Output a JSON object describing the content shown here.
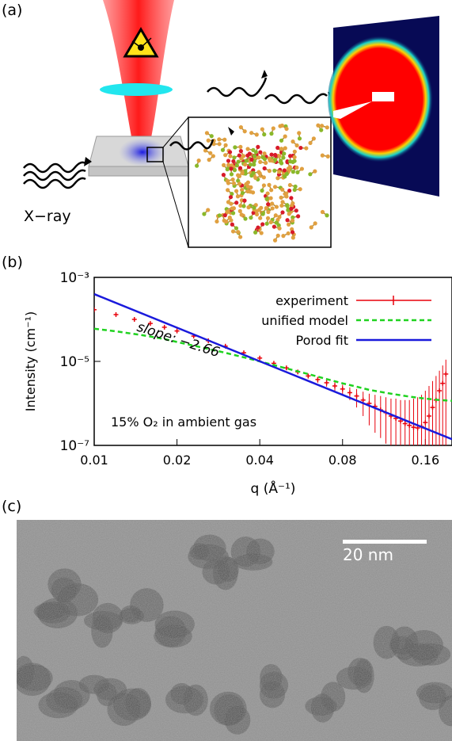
{
  "panels": {
    "a": {
      "label": "(a)",
      "xray_label": "X−ray"
    },
    "b": {
      "label": "(b)"
    },
    "c": {
      "label": "(c)",
      "scale_bar_label": "20 nm"
    }
  },
  "chart_data": {
    "type": "line",
    "xlabel": "q (Å⁻¹)",
    "ylabel": "Intensity (cm⁻¹)",
    "x_scale": "log",
    "y_scale": "log",
    "xlim": [
      0.01,
      0.2
    ],
    "ylim": [
      1e-07,
      0.001
    ],
    "x_ticks": [
      0.01,
      0.02,
      0.04,
      0.08,
      0.16
    ],
    "x_tick_labels": [
      "0.01",
      "0.02",
      "0.04",
      "0.08",
      "0.16"
    ],
    "y_ticks": [
      1e-07,
      1e-05,
      0.001
    ],
    "y_tick_labels": [
      "10⁻⁷",
      "10⁻⁵",
      "10⁻³"
    ],
    "legend_position": "top-right",
    "annotations": [
      {
        "text": "slope: −2.66"
      },
      {
        "text": "15% O₂ in ambient gas"
      }
    ],
    "series": [
      {
        "name": "experiment",
        "style": "red points with error bars",
        "color": "#e8000b",
        "x": [
          0.01,
          0.012,
          0.014,
          0.016,
          0.018,
          0.02,
          0.023,
          0.026,
          0.03,
          0.035,
          0.04,
          0.045,
          0.05,
          0.055,
          0.06,
          0.065,
          0.07,
          0.075,
          0.08,
          0.085,
          0.09,
          0.095,
          0.1,
          0.105,
          0.11,
          0.115,
          0.12,
          0.125,
          0.13,
          0.135,
          0.14,
          0.145,
          0.15,
          0.155,
          0.16,
          0.165,
          0.17,
          0.175,
          0.18,
          0.185,
          0.19
        ],
        "y": [
          0.00017,
          0.00013,
          0.0001,
          8e-05,
          6.5e-05,
          5.3e-05,
          4e-05,
          3.1e-05,
          2.3e-05,
          1.6e-05,
          1.2e-05,
          9e-06,
          7e-06,
          5.6e-06,
          4.5e-06,
          3.7e-06,
          3.1e-06,
          2.6e-06,
          2.2e-06,
          1.8e-06,
          1.5e-06,
          1.2e-06,
          1e-06,
          8.5e-07,
          7e-07,
          6e-07,
          5e-07,
          4.4e-07,
          3.8e-07,
          3.3e-07,
          3e-07,
          2.7e-07,
          2.6e-07,
          2.8e-07,
          3.5e-07,
          5e-07,
          8e-07,
          1.2e-06,
          2e-06,
          3e-06,
          5e-06
        ],
        "err_low": [
          0.00016,
          0.000122,
          9.4e-05,
          7.5e-05,
          6.1e-05,
          5e-05,
          3.75e-05,
          2.9e-05,
          2.15e-05,
          1.48e-05,
          1.1e-05,
          8.2e-06,
          6.3e-06,
          5e-06,
          3.9e-06,
          3.1e-06,
          2.5e-06,
          2e-06,
          1.6e-06,
          1.2e-06,
          8e-07,
          5e-07,
          3e-07,
          2e-07,
          1.5e-07,
          1.1e-07,
          1e-07,
          1e-07,
          1e-07,
          1e-07,
          1e-07,
          1e-07,
          1e-07,
          1e-07,
          1e-07,
          1e-07,
          1e-07,
          1e-07,
          1e-07,
          1e-07,
          1e-07
        ],
        "err_high": [
          0.00018,
          0.000138,
          0.000106,
          8.5e-05,
          6.9e-05,
          5.6e-05,
          4.25e-05,
          3.3e-05,
          2.45e-05,
          1.72e-05,
          1.3e-05,
          9.8e-06,
          7.7e-06,
          6.2e-06,
          5.1e-06,
          4.3e-06,
          3.7e-06,
          3.2e-06,
          2.8e-06,
          2.4e-06,
          2.2e-06,
          1.9e-06,
          1.7e-06,
          1.6e-06,
          1.5e-06,
          1.4e-06,
          1.3e-06,
          1.3e-06,
          1.2e-06,
          1.2e-06,
          1.2e-06,
          1.3e-06,
          1.4e-06,
          1.6e-06,
          2e-06,
          2.6e-06,
          3.4e-06,
          4.5e-06,
          6e-06,
          8e-06,
          1.1e-05
        ]
      },
      {
        "name": "unified model",
        "style": "green dashed line",
        "color": "#1fd21f",
        "x": [
          0.01,
          0.012,
          0.015,
          0.018,
          0.02,
          0.025,
          0.03,
          0.035,
          0.04,
          0.05,
          0.06,
          0.07,
          0.08,
          0.09,
          0.1,
          0.12,
          0.14,
          0.16,
          0.18,
          0.2
        ],
        "y": [
          6e-05,
          5.2e-05,
          4.2e-05,
          3.4e-05,
          2.9e-05,
          2.1e-05,
          1.6e-05,
          1.25e-05,
          1e-05,
          6.8e-06,
          5e-06,
          3.8e-06,
          3e-06,
          2.5e-06,
          2.1e-06,
          1.7e-06,
          1.45e-06,
          1.3e-06,
          1.2e-06,
          1.15e-06
        ]
      },
      {
        "name": "Porod fit",
        "style": "blue solid line",
        "color": "#1a1adc",
        "x": [
          0.01,
          0.2
        ],
        "y": [
          0.0004,
          1.4e-07
        ]
      }
    ]
  }
}
